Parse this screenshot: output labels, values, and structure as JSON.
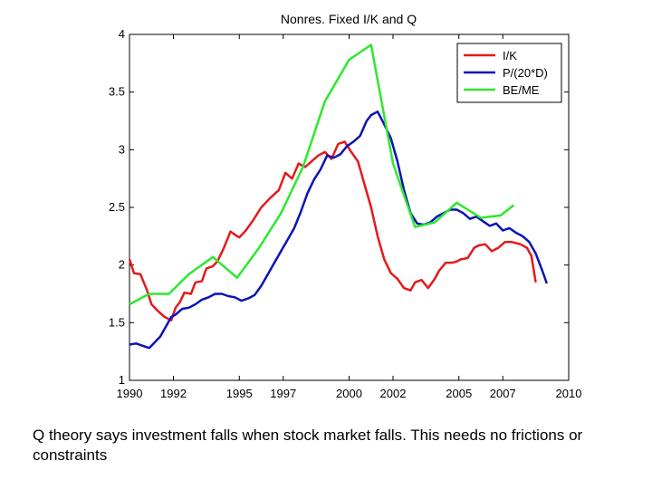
{
  "chart_data": {
    "type": "line",
    "title": "Nonres. Fixed I/K and Q",
    "xlabel": "",
    "ylabel": "",
    "xlim": [
      1990,
      2010
    ],
    "ylim": [
      1,
      4
    ],
    "xticks": [
      1990,
      1992,
      1995,
      1997,
      2000,
      2002,
      2005,
      2007,
      2010
    ],
    "xtick_labels": [
      "1990",
      "1992",
      "1995",
      "1997",
      "2000",
      "2002",
      "2005",
      "2007",
      "2010"
    ],
    "yticks": [
      1,
      1.5,
      2,
      2.5,
      3,
      3.5,
      4
    ],
    "ytick_labels": [
      "1",
      "1.5",
      "2",
      "2.5",
      "3",
      "3.5",
      "4"
    ],
    "grid": false,
    "legend_position": "top-right",
    "series": [
      {
        "name": "I/K",
        "color": "#e31a1c",
        "x": [
          1990.0,
          1990.2,
          1990.5,
          1990.8,
          1991.0,
          1991.3,
          1991.6,
          1991.9,
          1992.1,
          1992.3,
          1992.5,
          1992.8,
          1993.0,
          1993.3,
          1993.5,
          1993.8,
          1994.0,
          1994.3,
          1994.6,
          1994.9,
          1995.0,
          1995.3,
          1995.6,
          1996.0,
          1996.4,
          1996.8,
          1997.1,
          1997.4,
          1997.7,
          1998.0,
          1998.3,
          1998.6,
          1998.9,
          1999.2,
          1999.5,
          1999.8,
          2000.1,
          2000.4,
          2000.7,
          2001.0,
          2001.3,
          2001.6,
          2001.9,
          2002.2,
          2002.5,
          2002.8,
          2003.0,
          2003.3,
          2003.6,
          2003.9,
          2004.1,
          2004.4,
          2004.7,
          2004.9,
          2005.1,
          2005.4,
          2005.7,
          2005.9,
          2006.2,
          2006.5,
          2006.8,
          2007.1,
          2007.4,
          2007.8,
          2008.1,
          2008.3,
          2008.5
        ],
        "values": [
          2.05,
          1.93,
          1.92,
          1.78,
          1.66,
          1.6,
          1.55,
          1.52,
          1.63,
          1.68,
          1.76,
          1.75,
          1.85,
          1.86,
          1.97,
          1.99,
          2.03,
          2.15,
          2.29,
          2.25,
          2.24,
          2.3,
          2.38,
          2.5,
          2.58,
          2.65,
          2.8,
          2.75,
          2.88,
          2.85,
          2.9,
          2.95,
          2.98,
          2.92,
          3.05,
          3.07,
          2.98,
          2.9,
          2.7,
          2.5,
          2.25,
          2.05,
          1.93,
          1.88,
          1.8,
          1.78,
          1.85,
          1.87,
          1.8,
          1.88,
          1.95,
          2.02,
          2.02,
          2.03,
          2.05,
          2.06,
          2.15,
          2.17,
          2.18,
          2.12,
          2.15,
          2.2,
          2.2,
          2.18,
          2.15,
          2.08,
          1.85
        ]
      },
      {
        "name": "P/(20*D)",
        "color": "#0a14b4",
        "x": [
          1990.0,
          1990.3,
          1990.6,
          1990.9,
          1991.1,
          1991.4,
          1991.7,
          1991.9,
          1992.1,
          1992.4,
          1992.7,
          1993.0,
          1993.3,
          1993.6,
          1993.9,
          1994.2,
          1994.5,
          1994.8,
          1995.1,
          1995.4,
          1995.7,
          1996.0,
          1996.3,
          1996.6,
          1996.9,
          1997.2,
          1997.5,
          1997.8,
          1998.1,
          1998.4,
          1998.7,
          1999.0,
          1999.3,
          1999.6,
          1999.9,
          2000.2,
          2000.5,
          2000.8,
          2001.0,
          2001.3,
          2001.6,
          2001.9,
          2002.2,
          2002.5,
          2002.8,
          2003.1,
          2003.4,
          2003.7,
          2004.0,
          2004.3,
          2004.6,
          2004.9,
          2005.2,
          2005.5,
          2005.8,
          2006.1,
          2006.4,
          2006.7,
          2007.0,
          2007.3,
          2007.6,
          2007.9,
          2008.2,
          2008.5,
          2008.8,
          2009.0
        ],
        "values": [
          1.31,
          1.32,
          1.3,
          1.28,
          1.32,
          1.38,
          1.48,
          1.55,
          1.57,
          1.62,
          1.63,
          1.66,
          1.7,
          1.72,
          1.75,
          1.75,
          1.73,
          1.72,
          1.69,
          1.71,
          1.74,
          1.82,
          1.92,
          2.02,
          2.12,
          2.22,
          2.32,
          2.46,
          2.62,
          2.74,
          2.83,
          2.95,
          2.93,
          2.96,
          3.03,
          3.07,
          3.12,
          3.25,
          3.3,
          3.33,
          3.22,
          3.1,
          2.9,
          2.65,
          2.45,
          2.36,
          2.35,
          2.37,
          2.42,
          2.45,
          2.48,
          2.48,
          2.45,
          2.4,
          2.42,
          2.38,
          2.34,
          2.36,
          2.3,
          2.32,
          2.28,
          2.25,
          2.2,
          2.1,
          1.95,
          1.84
        ]
      },
      {
        "name": "BE/ME",
        "color": "#2ee82e",
        "x": [
          1990.0,
          1990.9,
          1991.8,
          1992.7,
          1993.8,
          1994.9,
          1995.9,
          1996.9,
          1997.9,
          1998.9,
          2000.0,
          2001.0,
          2002.0,
          2003.0,
          2003.9,
          2004.9,
          2006.0,
          2006.9,
          2007.5
        ],
        "values": [
          1.66,
          1.75,
          1.75,
          1.92,
          2.07,
          1.89,
          2.15,
          2.45,
          2.85,
          3.42,
          3.78,
          3.91,
          2.88,
          2.33,
          2.37,
          2.54,
          2.41,
          2.43,
          2.52
        ]
      }
    ]
  },
  "caption": "Q theory says investment falls when stock market falls. This needs no frictions or constraints"
}
